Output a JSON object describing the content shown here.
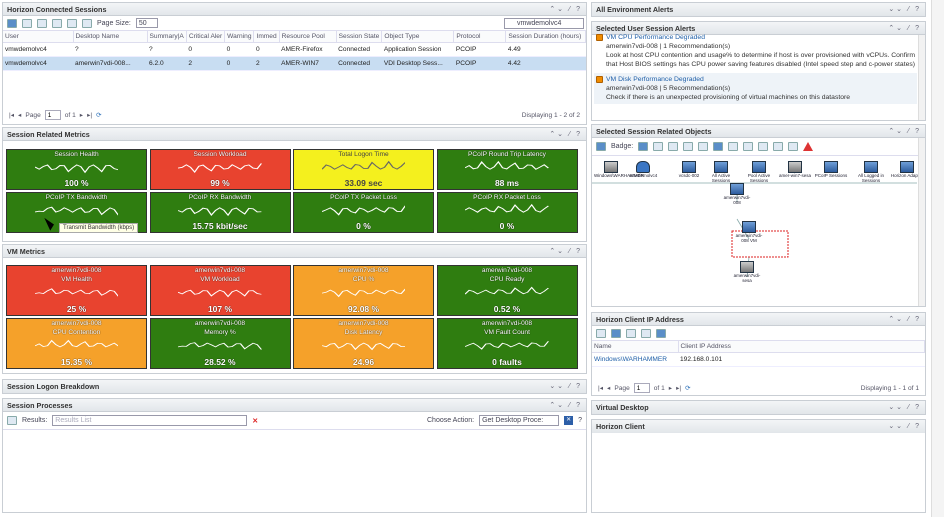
{
  "sessions": {
    "title": "Horizon Connected Sessions",
    "page_size_label": "Page Size:",
    "page_size": "50",
    "search": "vmwdemolvc4",
    "columns": [
      "User",
      "Desktop Name",
      "Summary|A",
      "Critical Aler",
      "Warning",
      "Immed",
      "Resource Pool",
      "Session State",
      "Object Type",
      "Protocol",
      "Session Duration (hours)"
    ],
    "rows": [
      [
        "vmwdemolvc4",
        "?",
        "?",
        "0",
        "0",
        "0",
        "AMER-Firefox",
        "Connected",
        "Application Session",
        "PCOIP",
        "4.49"
      ],
      [
        "vmwdemolvc4",
        "amerwin7vdi-008...",
        "6.2.0",
        "2",
        "0",
        "2",
        "AMER-WIN7",
        "Connected",
        "VDI Desktop Sess...",
        "PCOIP",
        "4.42"
      ]
    ],
    "pager": {
      "page_label": "Page",
      "page": "1",
      "of": "of 1",
      "display": "Displaying 1 - 2 of 2"
    }
  },
  "metrics": {
    "title": "Session Related Metrics",
    "tiles": [
      {
        "title": "Session Health",
        "value": "100 %",
        "color": "green"
      },
      {
        "title": "Session Workload",
        "value": "99 %",
        "color": "red"
      },
      {
        "title": "Total Logon Time",
        "value": "33.09 sec",
        "color": "yellow"
      },
      {
        "title": "PCoIP Round Trip Latency",
        "value": "88 ms",
        "color": "green"
      },
      {
        "title": "PCoIP TX Bandwidth",
        "value": "",
        "color": "green"
      },
      {
        "title": "PCoIP RX Bandwidth",
        "value": "15.75 kbit/sec",
        "color": "green"
      },
      {
        "title": "PCoIP TX Packet Loss",
        "value": "0 %",
        "color": "green"
      },
      {
        "title": "PCoIP RX Packet Loss",
        "value": "0 %",
        "color": "green"
      }
    ],
    "tooltip": "Transmit Bandwidth (kbps)"
  },
  "vm": {
    "title": "VM Metrics",
    "tiles": [
      {
        "sub": "amerwin7vdi-008",
        "title": "VM Health",
        "value": "25 %",
        "color": "red"
      },
      {
        "sub": "amerwin7vdi-008",
        "title": "VM Workload",
        "value": "107 %",
        "color": "red"
      },
      {
        "sub": "amerwin7vdi-008",
        "title": "CPU %",
        "value": "92.08 %",
        "color": "orange"
      },
      {
        "sub": "amerwin7vdi-008",
        "title": "CPU Ready",
        "value": "0.52 %",
        "color": "green"
      },
      {
        "sub": "amerwin7vdi-008",
        "title": "CPU Contention",
        "value": "15.35 %",
        "color": "orange"
      },
      {
        "sub": "amerwin7vdi-008",
        "title": "Memory %",
        "value": "28.52 %",
        "color": "green"
      },
      {
        "sub": "amerwin7vdi-008",
        "title": "Disk Latency",
        "value": "24.96",
        "color": "orange"
      },
      {
        "sub": "amerwin7vdi-008",
        "title": "VM Fault Count",
        "value": "0 faults",
        "color": "green"
      }
    ]
  },
  "logon": {
    "title": "Session Logon Breakdown"
  },
  "processes": {
    "title": "Session Processes",
    "results_label": "Results:",
    "results_placeholder": "Results List",
    "action_label": "Choose Action:",
    "action_value": "Get Desktop Proce:"
  },
  "env_alerts": {
    "title": "All Environment Alerts"
  },
  "user_alerts": {
    "title": "Selected User Session Alerts",
    "items": [
      {
        "title": "VM CPU Performance Degraded",
        "sub": "amerwin7vdi-008 | 1 Recommendation(s)",
        "text": "Look at host CPU contention and usage% to determine if host is over provisioned with vCPUs. Confirm that Host BIOS settings has CPU power saving features disabled (Intel speed step and c-power states)"
      },
      {
        "title": "VM Disk Performance Degraded",
        "sub": "amerwin7vdi-008 | 5 Recommendation(s)",
        "text": "Check if there is an unexpected provisioning of virtual machines on this datastore"
      }
    ]
  },
  "objects": {
    "title": "Selected Session Related Objects",
    "badge": "Badge:",
    "nodes": [
      "Windows\\WARHAMMER",
      "vmwdemolvc4",
      "vcsdc-002",
      "All Active Sessions",
      "Pool Active Sessions",
      "amer-win7-sesa",
      "PCoIP Sessions",
      "All Logged in Sessions",
      "Horizon Adapter",
      "amerwin7vdi-008",
      "amerwin7vdi-008 VM",
      "amerwin7vdi-sesa"
    ]
  },
  "client_ip": {
    "title": "Horizon Client IP Address",
    "columns": [
      "Name",
      "Client IP Address"
    ],
    "rows": [
      [
        "Windows\\WARHAMMER",
        "192.168.0.101"
      ]
    ],
    "pager": {
      "page_label": "Page",
      "page": "1",
      "of": "of 1",
      "display": "Displaying 1 - 1 of 1"
    }
  },
  "vdesk": {
    "title": "Virtual Desktop"
  },
  "hclient": {
    "title": "Horizon Client"
  }
}
